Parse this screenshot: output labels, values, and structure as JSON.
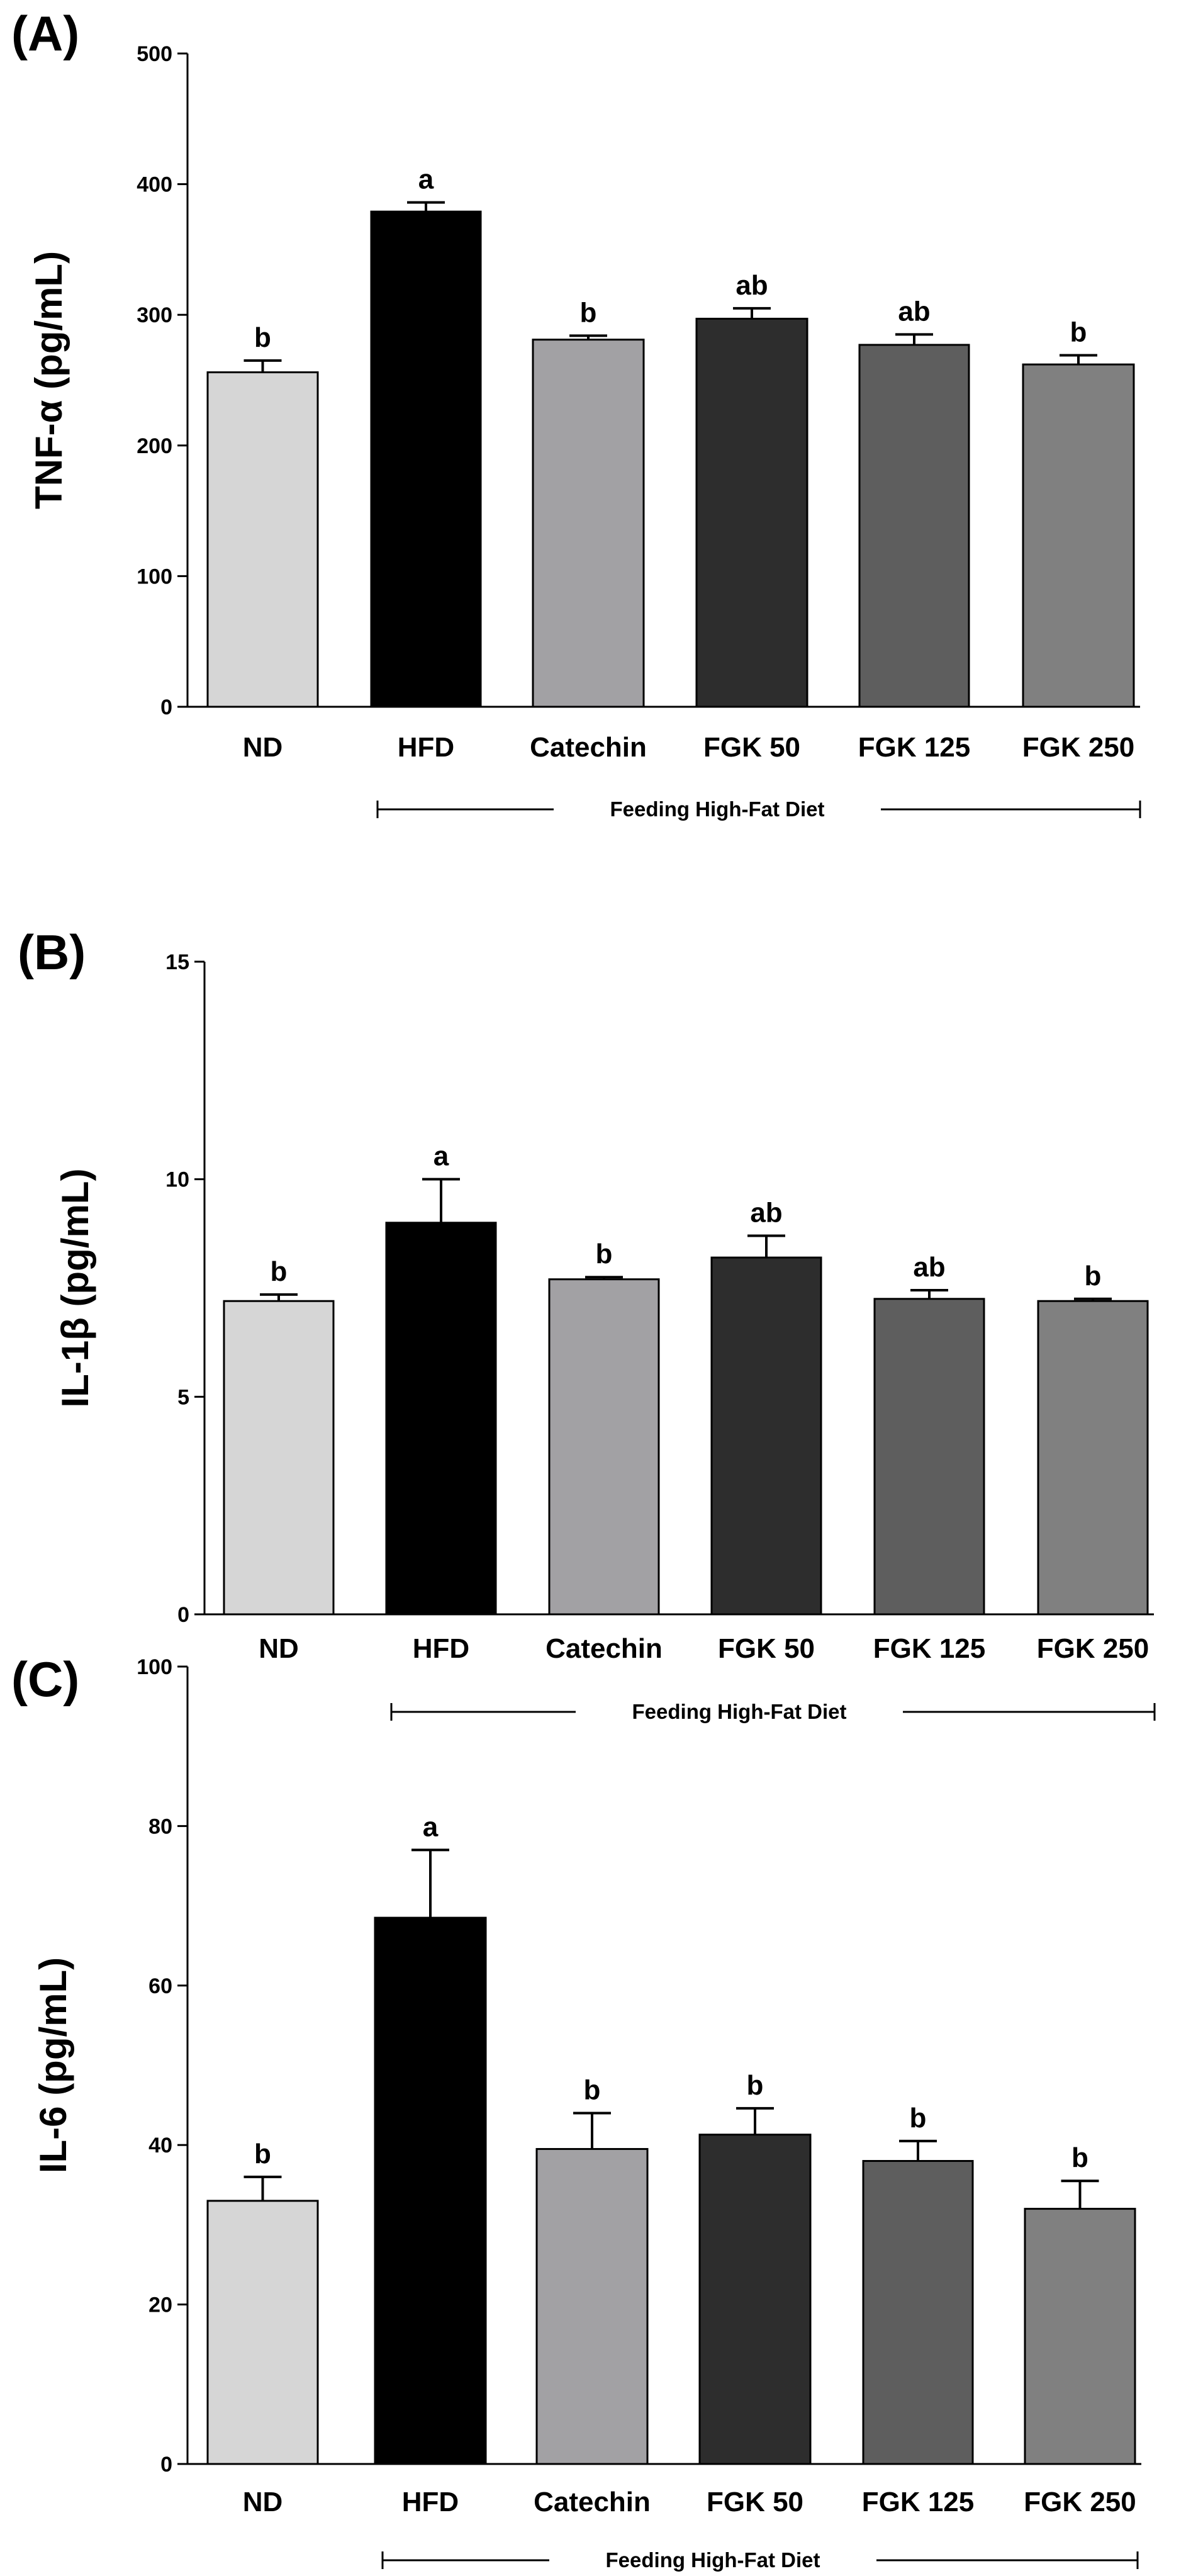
{
  "chart_data": [
    {
      "type": "bar",
      "panel": "(A)",
      "ylabel": "TNF-α (pg/mL)",
      "ylim": [
        0,
        500
      ],
      "yticks": [
        0,
        100,
        200,
        300,
        400,
        500
      ],
      "categories": [
        "ND",
        "HFD",
        "Catechin",
        "FGK 50",
        "FGK 125",
        "FGK 250"
      ],
      "values": [
        256,
        379,
        281,
        297,
        277,
        262
      ],
      "errors": [
        9,
        7,
        3,
        8,
        8,
        7
      ],
      "letters": [
        "b",
        "a",
        "b",
        "ab",
        "ab",
        "b"
      ],
      "colors": [
        "#d6d6d6",
        "#000000",
        "#a2a1a4",
        "#2d2d2d",
        "#5e5e5e",
        "#808080"
      ],
      "group_label": "Feeding High-Fat Diet"
    },
    {
      "type": "bar",
      "panel": "(B)",
      "ylabel": "IL-1β (pg/mL)",
      "ylim": [
        0,
        15
      ],
      "yticks": [
        0,
        5,
        10,
        15
      ],
      "categories": [
        "ND",
        "HFD",
        "Catechin",
        "FGK 50",
        "FGK 125",
        "FGK 250"
      ],
      "values": [
        7.2,
        9.0,
        7.7,
        8.2,
        7.25,
        7.2
      ],
      "errors": [
        0.15,
        1.0,
        0.05,
        0.5,
        0.2,
        0.05
      ],
      "letters": [
        "b",
        "a",
        "b",
        "ab",
        "ab",
        "b"
      ],
      "colors": [
        "#d6d6d6",
        "#000000",
        "#a2a1a4",
        "#2d2d2d",
        "#5e5e5e",
        "#808080"
      ],
      "group_label": "Feeding High-Fat Diet"
    },
    {
      "type": "bar",
      "panel": "(C)",
      "ylabel": "IL-6 (pg/mL)",
      "ylim": [
        0,
        100
      ],
      "yticks": [
        0,
        20,
        40,
        60,
        80,
        100
      ],
      "categories": [
        "ND",
        "HFD",
        "Catechin",
        "FGK 50",
        "FGK 125",
        "FGK 250"
      ],
      "values": [
        33,
        68.5,
        39.5,
        41.3,
        38,
        32
      ],
      "errors": [
        3,
        8.5,
        4.5,
        3.3,
        2.5,
        3.5
      ],
      "letters": [
        "b",
        "a",
        "b",
        "b",
        "b",
        "b"
      ],
      "colors": [
        "#d6d6d6",
        "#000000",
        "#a2a1a4",
        "#2d2d2d",
        "#5e5e5e",
        "#808080"
      ],
      "group_label": "Feeding High-Fat Diet"
    }
  ]
}
